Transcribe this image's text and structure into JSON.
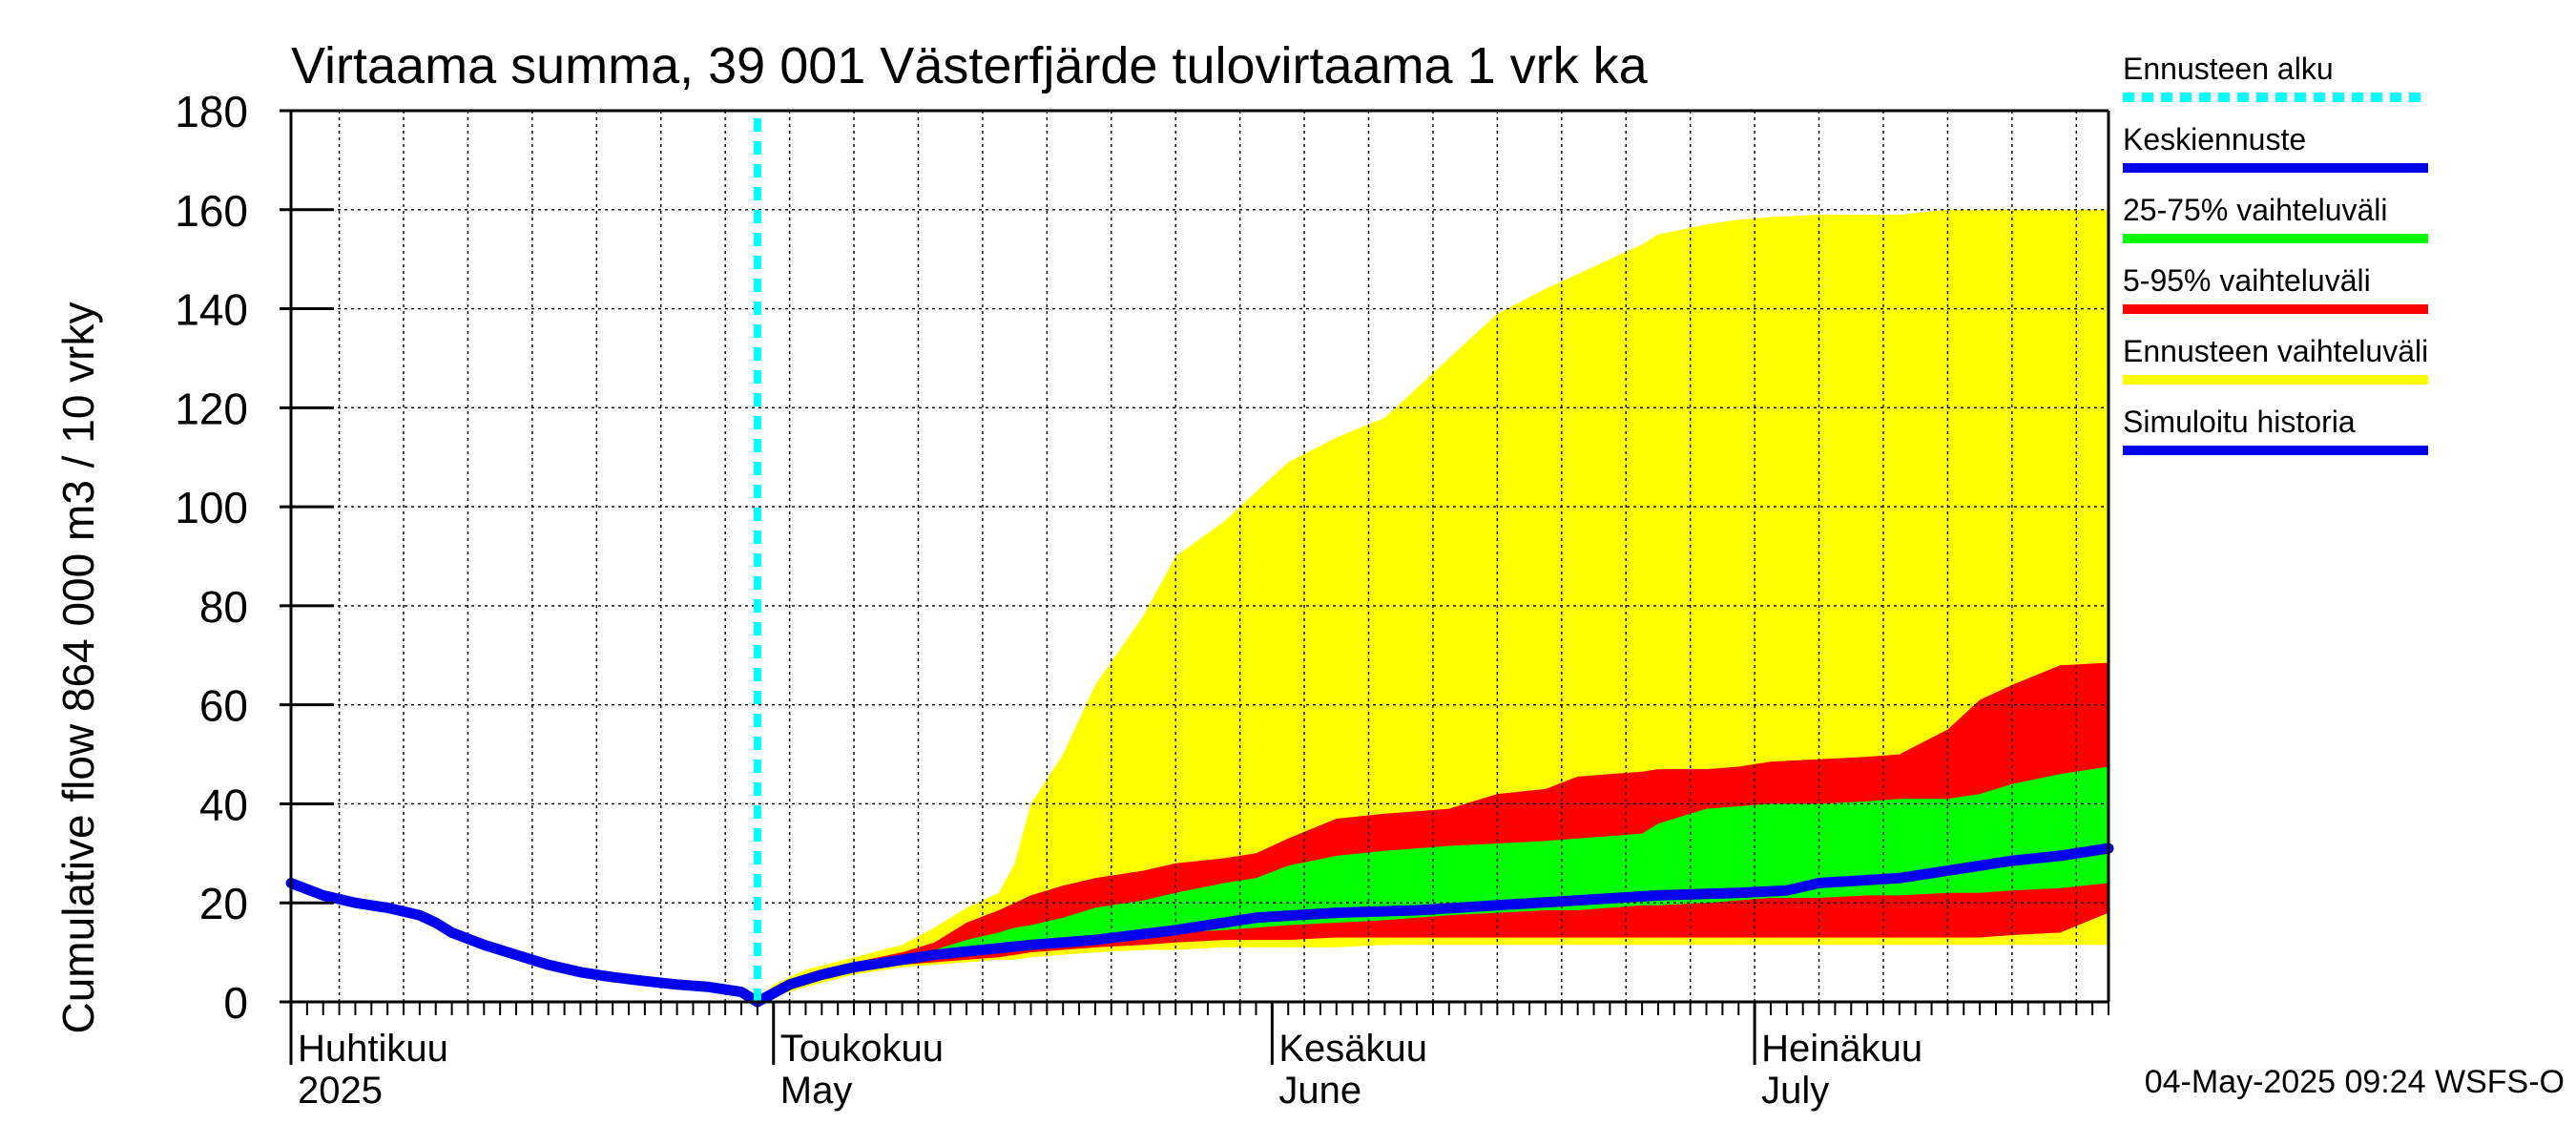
{
  "chart_data": {
    "type": "area",
    "title": "Virtaama summa, 39 001 Västerfjärde tulovirtaama 1 vrk ka",
    "ylabel": "Cumulative flow    864 000 m3 / 10 vrky",
    "ylim": [
      0,
      180
    ],
    "yticks": [
      0,
      20,
      40,
      60,
      80,
      100,
      120,
      140,
      160,
      180
    ],
    "x_range_days": [
      0,
      113
    ],
    "forecast_start_day": 29,
    "month_labels": [
      {
        "day": 0,
        "line1": "Huhtikuu",
        "line2": "2025"
      },
      {
        "day": 30,
        "line1": "Toukokuu",
        "line2": "May"
      },
      {
        "day": 61,
        "line1": "Kesäkuu",
        "line2": "June"
      },
      {
        "day": 91,
        "line1": "Heinäkuu",
        "line2": "July"
      }
    ],
    "timestamp": "04-May-2025 09:24 WSFS-O",
    "colors": {
      "forecast_start": "#00ffff",
      "mean": "#0000ee",
      "p25_75": "#00ff00",
      "p5_95": "#ff0000",
      "range": "#ffff00",
      "history": "#0000ee"
    },
    "legend": [
      {
        "label": "Ennusteen alku",
        "key": "forecast_start",
        "style": "dashed"
      },
      {
        "label": "Keskiennuste",
        "key": "mean",
        "style": "solid"
      },
      {
        "label": "25-75% vaihteluväli",
        "key": "p25_75",
        "style": "solid"
      },
      {
        "label": "5-95% vaihteluväli",
        "key": "p5_95",
        "style": "solid"
      },
      {
        "label": "Ennusteen vaihteluväli",
        "key": "range",
        "style": "solid"
      },
      {
        "label": "Simuloitu historia",
        "key": "history",
        "style": "solid"
      }
    ],
    "series": {
      "history": {
        "name": "Simuloitu historia",
        "x": [
          0,
          2,
          4,
          6,
          8,
          9,
          10,
          12,
          14,
          16,
          18,
          20,
          22,
          24,
          26,
          28,
          29
        ],
        "y": [
          24,
          21.5,
          20,
          19,
          17.5,
          16,
          14,
          11.5,
          9.5,
          7.5,
          6,
          5,
          4.2,
          3.5,
          3,
          2,
          0
        ]
      },
      "mean": {
        "name": "Keskiennuste",
        "x": [
          29,
          31,
          33,
          35,
          37,
          40,
          43,
          46,
          50,
          55,
          60,
          65,
          70,
          75,
          80,
          85,
          90,
          93,
          95,
          100,
          103,
          105,
          107,
          110,
          113
        ],
        "y": [
          0,
          3.5,
          5.5,
          7,
          8,
          9.5,
          10.5,
          11.5,
          12.5,
          14.5,
          17,
          18,
          18.5,
          19.5,
          20.5,
          21.5,
          22,
          22.5,
          24,
          25,
          26.5,
          27.5,
          28.5,
          29.5,
          31
        ]
      },
      "envelope": {
        "x": [
          29,
          30,
          32,
          35,
          38,
          40,
          42,
          44,
          45,
          46,
          48,
          50,
          53,
          55,
          58,
          60,
          62,
          65,
          68,
          70,
          72,
          75,
          78,
          80,
          82,
          84,
          85,
          88,
          90,
          92,
          95,
          98,
          100,
          103,
          105,
          107,
          110,
          113
        ],
        "range_low": [
          0,
          1,
          3,
          5.5,
          7,
          7.5,
          8,
          8.5,
          8.5,
          9,
          9.5,
          10,
          10.5,
          10.5,
          11,
          11,
          11,
          11,
          11.5,
          11.5,
          11.5,
          11.5,
          11.5,
          11.5,
          11.5,
          11.5,
          11.5,
          11.5,
          11.5,
          11.5,
          11.5,
          11.5,
          11.5,
          11.5,
          11.5,
          11.5,
          11.5,
          11.5
        ],
        "p5": [
          0,
          1.5,
          4,
          6,
          7.5,
          8,
          8.5,
          9,
          9.5,
          10,
          10.5,
          11,
          11.5,
          12,
          12.5,
          12.5,
          12.5,
          13,
          13,
          13,
          13,
          13,
          13,
          13,
          13,
          13,
          13,
          13,
          13,
          13,
          13,
          13,
          13,
          13,
          13,
          13.5,
          14,
          18
        ],
        "p25": [
          0,
          2,
          4.5,
          7,
          8,
          9,
          9.5,
          10,
          10.5,
          11,
          11.5,
          12,
          13,
          14,
          14.5,
          15,
          15.5,
          16,
          16.5,
          17,
          17.5,
          18,
          18.5,
          18.5,
          19,
          19.5,
          19.5,
          20,
          20.5,
          21,
          21,
          21.5,
          21.5,
          22,
          22,
          22.5,
          23,
          24
        ],
        "p75": [
          0,
          2.5,
          5,
          7.5,
          9,
          10.5,
          12.5,
          14,
          15,
          15.5,
          17,
          19,
          20.5,
          22,
          24,
          25,
          27.5,
          29.5,
          30.5,
          31,
          31.5,
          32,
          32.5,
          33,
          33.5,
          34,
          36,
          39,
          39.5,
          40,
          40,
          40.5,
          41,
          41,
          42,
          44,
          46,
          47.5
        ],
        "p95": [
          0,
          3,
          5.5,
          8,
          10,
          12,
          16,
          18.5,
          20,
          21.5,
          23.5,
          25,
          26.5,
          28,
          29,
          30,
          33,
          37,
          38,
          38.5,
          39,
          42,
          43,
          45.5,
          46,
          46.5,
          47,
          47,
          47.5,
          48.5,
          49,
          49.5,
          50,
          55,
          61,
          64,
          68,
          68.5
        ],
        "range_high": [
          0,
          3.5,
          6.5,
          9,
          11.5,
          15,
          19,
          22,
          28,
          40,
          50,
          64,
          78,
          90,
          97,
          103,
          109,
          114,
          118,
          124,
          130,
          139,
          144,
          147,
          150,
          153,
          155,
          157,
          158,
          158.5,
          159,
          159,
          159,
          160,
          160,
          160,
          160,
          160
        ]
      }
    }
  }
}
